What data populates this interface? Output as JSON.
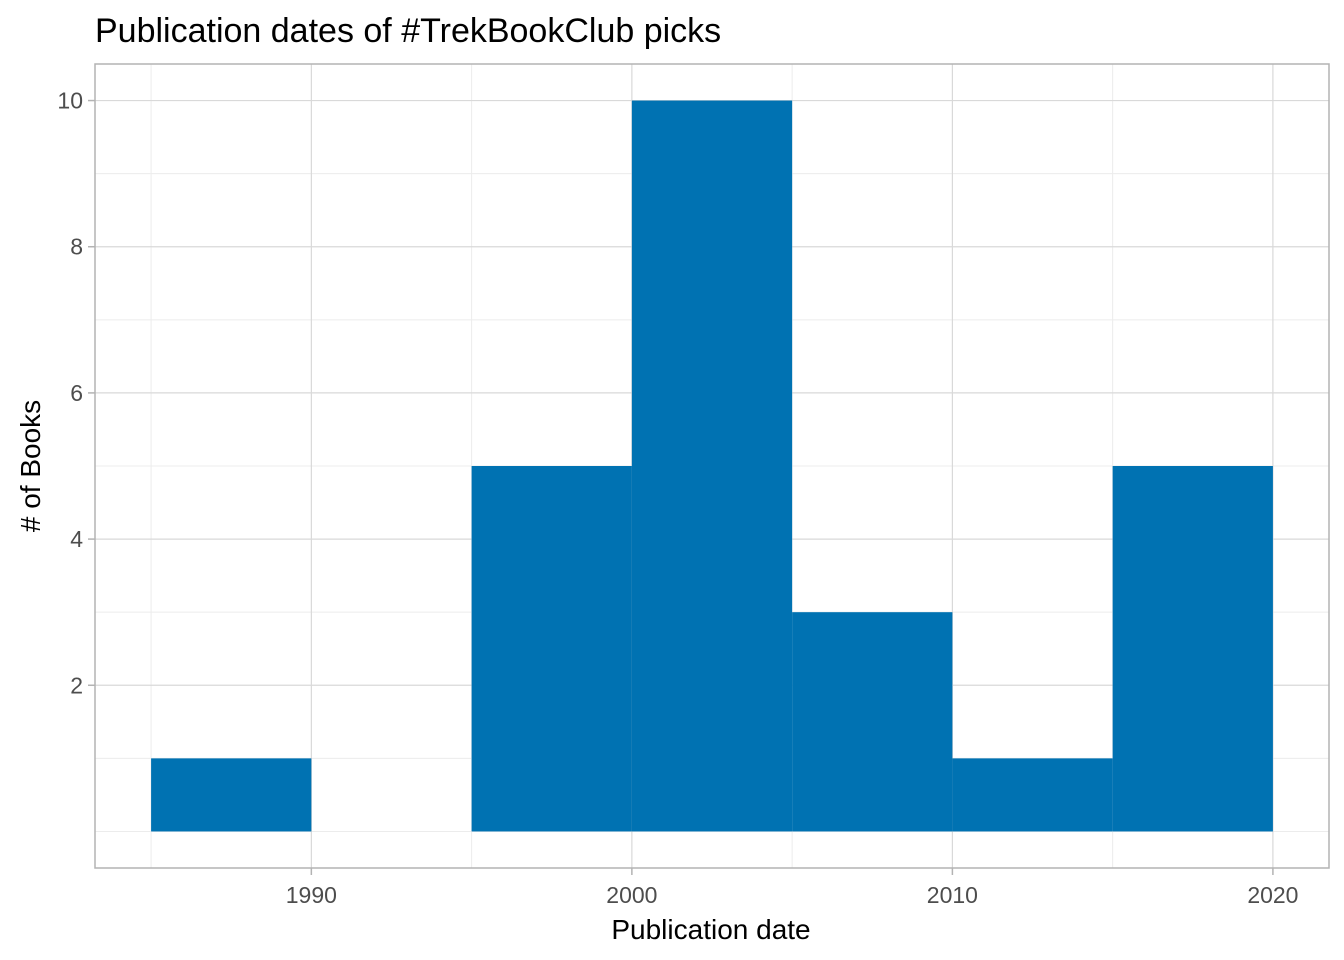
{
  "chart_data": {
    "type": "bar",
    "title": "Publication dates of #TrekBookClub picks",
    "xlabel": "Publication date",
    "ylabel": "# of Books",
    "xlim": [
      1983.25,
      2021.75
    ],
    "ylim": [
      -0.5,
      10.5
    ],
    "x_ticks": [
      1990,
      2000,
      2010,
      2020
    ],
    "x_tick_labels": [
      "1990",
      "2000",
      "2010",
      "2020"
    ],
    "x_minor_ticks": [
      1985,
      1995,
      2005,
      2015
    ],
    "y_ticks": [
      2,
      4,
      6,
      8,
      10
    ],
    "y_tick_labels": [
      "2",
      "4",
      "6",
      "8",
      "10"
    ],
    "y_minor_ticks": [
      0,
      1,
      3,
      5,
      7,
      9
    ],
    "grid": true,
    "legend": "none",
    "bins": [
      {
        "start": 1985,
        "end": 1990,
        "count": 1
      },
      {
        "start": 1990,
        "end": 1995,
        "count": 0
      },
      {
        "start": 1995,
        "end": 2000,
        "count": 5
      },
      {
        "start": 2000,
        "end": 2005,
        "count": 10
      },
      {
        "start": 2005,
        "end": 2010,
        "count": 3
      },
      {
        "start": 2010,
        "end": 2015,
        "count": 1
      },
      {
        "start": 2015,
        "end": 2020,
        "count": 5
      }
    ],
    "colors": {
      "bar": "#0072B2",
      "grid_major": "#d9d9d9",
      "grid_minor": "#ececec",
      "border": "#b3b3b3",
      "tick_label": "#4d4d4d"
    }
  }
}
